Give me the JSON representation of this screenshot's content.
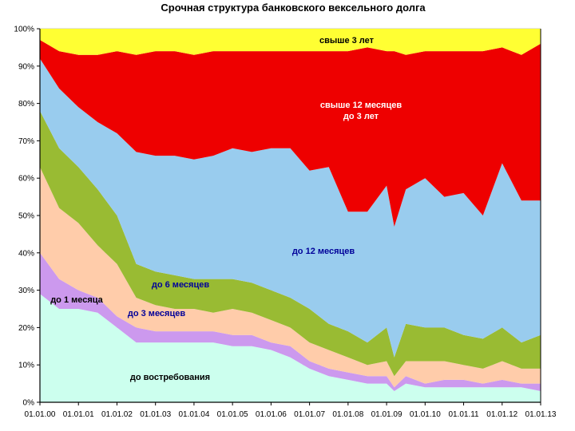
{
  "colors": {
    "band_colors": [
      "#ccffee",
      "#cc99ee",
      "#ffccaa",
      "#99bb33",
      "#99ccee",
      "#ee0000",
      "#ffff33"
    ],
    "label_colors": [
      "#000000",
      "#000000",
      "#000099",
      "#000099",
      "#000099",
      "#ffffff",
      "#000000"
    ],
    "grid": "#c0c0c0",
    "axis": "#000000"
  },
  "chart_data": {
    "type": "area",
    "title": "Срочная структура банковского вексельного долга",
    "xlabel": "",
    "ylabel": "",
    "stacked": true,
    "percent": true,
    "ylim": [
      0,
      100
    ],
    "y_ticks": [
      "0%",
      "10%",
      "20%",
      "30%",
      "40%",
      "50%",
      "60%",
      "70%",
      "80%",
      "90%",
      "100%"
    ],
    "x_ticks": [
      "01.01.00",
      "01.01.01",
      "01.01.02",
      "01.01.03",
      "01.01.04",
      "01.01.05",
      "01.01.06",
      "01.01.07",
      "01.01.08",
      "01.01.09",
      "01.01.10",
      "01.01.11",
      "01.01.12",
      "01.01.13"
    ],
    "grid": true,
    "legend": "none",
    "x": [
      2000,
      2000.5,
      2001,
      2001.5,
      2002,
      2002.5,
      2003,
      2003.5,
      2004,
      2004.5,
      2005,
      2005.5,
      2006,
      2006.5,
      2007,
      2007.5,
      2008,
      2008.5,
      2009,
      2009.2,
      2009.5,
      2010,
      2010.5,
      2011,
      2011.5,
      2012,
      2012.5,
      2013
    ],
    "series": [
      {
        "name": "до востребования",
        "values": [
          29,
          25,
          25,
          24,
          20,
          16,
          16,
          16,
          16,
          16,
          15,
          15,
          14,
          12,
          9,
          7,
          6,
          5,
          5,
          3,
          5,
          4,
          4,
          4,
          4,
          4,
          4,
          3
        ]
      },
      {
        "name": "до 1 месяца",
        "values": [
          11,
          8,
          5,
          4,
          3,
          4,
          3,
          3,
          3,
          3,
          3,
          3,
          2,
          3,
          2,
          2,
          2,
          2,
          2,
          1,
          2,
          1,
          2,
          2,
          1,
          2,
          1,
          2
        ]
      },
      {
        "name": "до 3 месяцев",
        "values": [
          23,
          19,
          18,
          14,
          14,
          8,
          7,
          6,
          6,
          5,
          7,
          6,
          6,
          5,
          5,
          5,
          4,
          3,
          4,
          3,
          4,
          6,
          5,
          4,
          4,
          5,
          4,
          4
        ]
      },
      {
        "name": "до 6 месяцев",
        "values": [
          15,
          16,
          15,
          15,
          13,
          9,
          9,
          9,
          8,
          9,
          8,
          8,
          8,
          8,
          9,
          7,
          7,
          6,
          9,
          5,
          10,
          9,
          9,
          8,
          8,
          9,
          7,
          9
        ]
      },
      {
        "name": "до 12 месяцев",
        "values": [
          14,
          16,
          16,
          18,
          22,
          30,
          31,
          32,
          32,
          33,
          35,
          35,
          38,
          40,
          37,
          42,
          32,
          35,
          38,
          35,
          36,
          40,
          35,
          38,
          33,
          44,
          38,
          36
        ]
      },
      {
        "name": "свыше 12 месяцев до 3 лет",
        "values": [
          5,
          10,
          14,
          18,
          22,
          26,
          28,
          28,
          28,
          28,
          26,
          27,
          26,
          26,
          32,
          31,
          43,
          44,
          36,
          47,
          36,
          34,
          39,
          38,
          44,
          31,
          39,
          42
        ]
      },
      {
        "name": "свыше 3 лет",
        "values": [
          3,
          6,
          7,
          7,
          6,
          7,
          6,
          6,
          7,
          6,
          6,
          6,
          6,
          6,
          6,
          6,
          6,
          5,
          6,
          6,
          7,
          6,
          6,
          6,
          6,
          5,
          7,
          4
        ]
      }
    ],
    "labels": [
      "до востребования",
      "до 1 месяца",
      "до 3 месяцев",
      "до 6 месяцев",
      "до 12 месяцев",
      "свыше 12 месяцев\nдо 3 лет",
      "свыше 3 лет"
    ]
  }
}
